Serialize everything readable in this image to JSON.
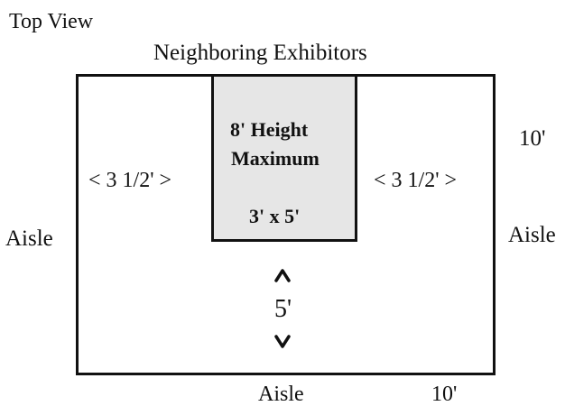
{
  "title": "Top View",
  "top_label": "Neighboring Exhibitors",
  "block": {
    "fill": "#e6e6e6",
    "line1": "8' Height",
    "line2": "Maximum",
    "size": "3' x 5'"
  },
  "left_gap": "< 3 1/2' >",
  "right_gap": "< 3 1/2' >",
  "depth_label": "10'",
  "width_label": "10'",
  "aisle_left": "Aisle",
  "aisle_right": "Aisle",
  "aisle_bottom": "Aisle",
  "front_gap": "5'"
}
